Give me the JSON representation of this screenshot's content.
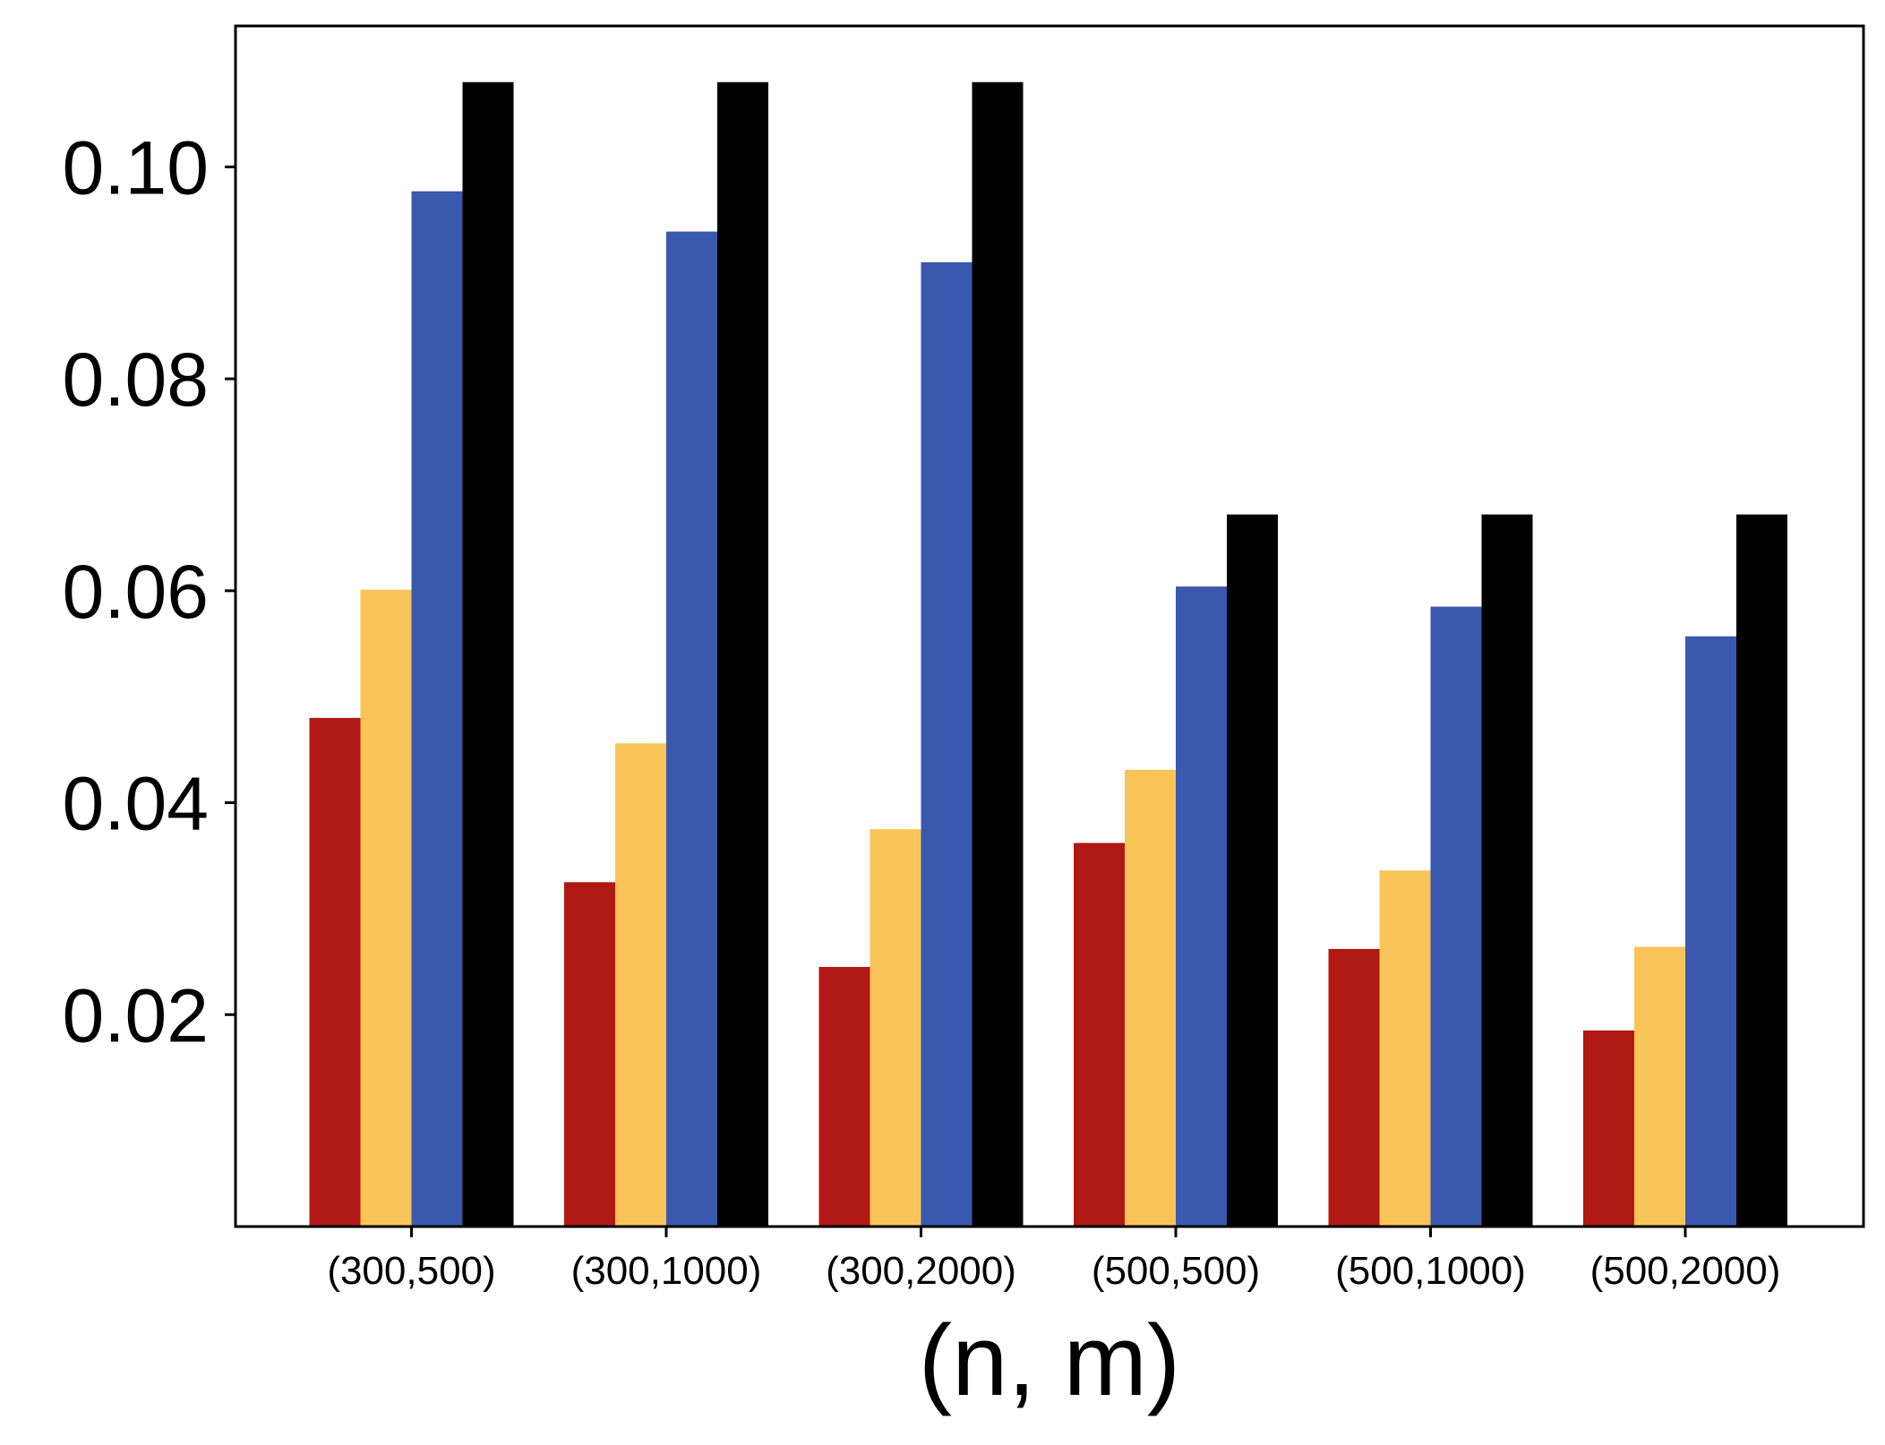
{
  "chart_data": {
    "type": "bar",
    "title": "",
    "xlabel": "(n, m)",
    "ylabel": "",
    "categories": [
      "(300,500)",
      "(300,1000)",
      "(300,2000)",
      "(500,500)",
      "(500,1000)",
      "(500,2000)"
    ],
    "series": [
      {
        "color": "#b01813",
        "values": [
          0.048,
          0.0325,
          0.0245,
          0.0362,
          0.0262,
          0.0185
        ]
      },
      {
        "color": "#f8c457",
        "values": [
          0.0601,
          0.0456,
          0.0375,
          0.0431,
          0.0336,
          0.0264
        ]
      },
      {
        "color": "#3a58ad",
        "values": [
          0.0977,
          0.0939,
          0.091,
          0.0604,
          0.0585,
          0.0557
        ]
      },
      {
        "color": "#000000",
        "values": [
          0.108,
          0.108,
          0.108,
          0.0672,
          0.0672,
          0.0672
        ]
      }
    ],
    "yticks": [
      0.02,
      0.04,
      0.06,
      0.08,
      0.1
    ],
    "ytick_labels": [
      "0.02",
      "0.04",
      "0.06",
      "0.08",
      "0.10"
    ],
    "ylim": [
      0,
      0.1133
    ],
    "grid": false,
    "legend": "none"
  }
}
